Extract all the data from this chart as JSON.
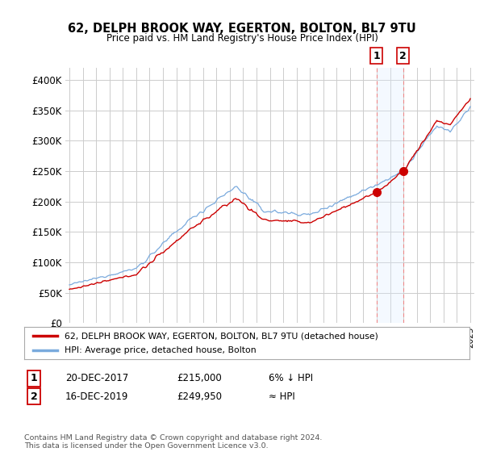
{
  "title": "62, DELPH BROOK WAY, EGERTON, BOLTON, BL7 9TU",
  "subtitle": "Price paid vs. HM Land Registry's House Price Index (HPI)",
  "ylabel_ticks": [
    "£0",
    "£50K",
    "£100K",
    "£150K",
    "£200K",
    "£250K",
    "£300K",
    "£350K",
    "£400K"
  ],
  "ytick_values": [
    0,
    50000,
    100000,
    150000,
    200000,
    250000,
    300000,
    350000,
    400000
  ],
  "ylim": [
    0,
    420000
  ],
  "xlim_start": 1994.7,
  "xlim_end": 2025.3,
  "sale1_x": 2017.97,
  "sale1_y": 215000,
  "sale2_x": 2019.97,
  "sale2_y": 249950,
  "legend_line1": "62, DELPH BROOK WAY, EGERTON, BOLTON, BL7 9TU (detached house)",
  "legend_line2": "HPI: Average price, detached house, Bolton",
  "table_row1": [
    "1",
    "20-DEC-2017",
    "£215,000",
    "6% ↓ HPI"
  ],
  "table_row2": [
    "2",
    "16-DEC-2019",
    "£249,950",
    "≈ HPI"
  ],
  "footnote": "Contains HM Land Registry data © Crown copyright and database right 2024.\nThis data is licensed under the Open Government Licence v3.0.",
  "line_color_red": "#cc0000",
  "line_color_blue": "#7aaadd",
  "highlight_box_color": "#ddeeff",
  "grid_color": "#cccccc",
  "background_color": "#ffffff"
}
